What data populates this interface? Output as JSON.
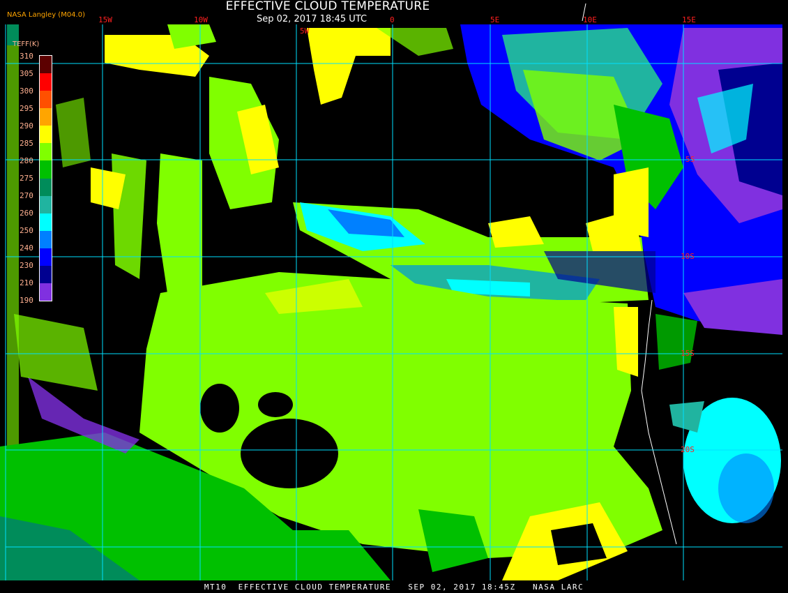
{
  "header": {
    "title": "EFFECTIVE CLOUD TEMPERATURE",
    "subtitle": "Sep 02, 2017 18:45 UTC",
    "credit": "NASA Langley (M04.0)"
  },
  "legend": {
    "title": "TEFF(K)",
    "labels": [
      "310",
      "305",
      "300",
      "295",
      "290",
      "285",
      "280",
      "275",
      "270",
      "260",
      "250",
      "240",
      "230",
      "210",
      "190"
    ],
    "colors": [
      "#5c0000",
      "#ff0000",
      "#ff5000",
      "#ffa500",
      "#ffff00",
      "#80ff00",
      "#00c000",
      "#008c5a",
      "#20b4a0",
      "#00ffff",
      "#0080ff",
      "#0000ff",
      "#000090",
      "#8030e0"
    ]
  },
  "grid": {
    "lon_labels": [
      "15W",
      "10W",
      "5W",
      "0",
      "5E",
      "10E",
      "15E"
    ],
    "lat_labels": [
      "5S",
      "10S",
      "15S",
      "20S"
    ],
    "line_color": "#00e0ff"
  },
  "footer": {
    "text": "MT10  EFFECTIVE CLOUD TEMPERATURE   SEP 02, 2017 18:45Z   NASA LARC"
  }
}
